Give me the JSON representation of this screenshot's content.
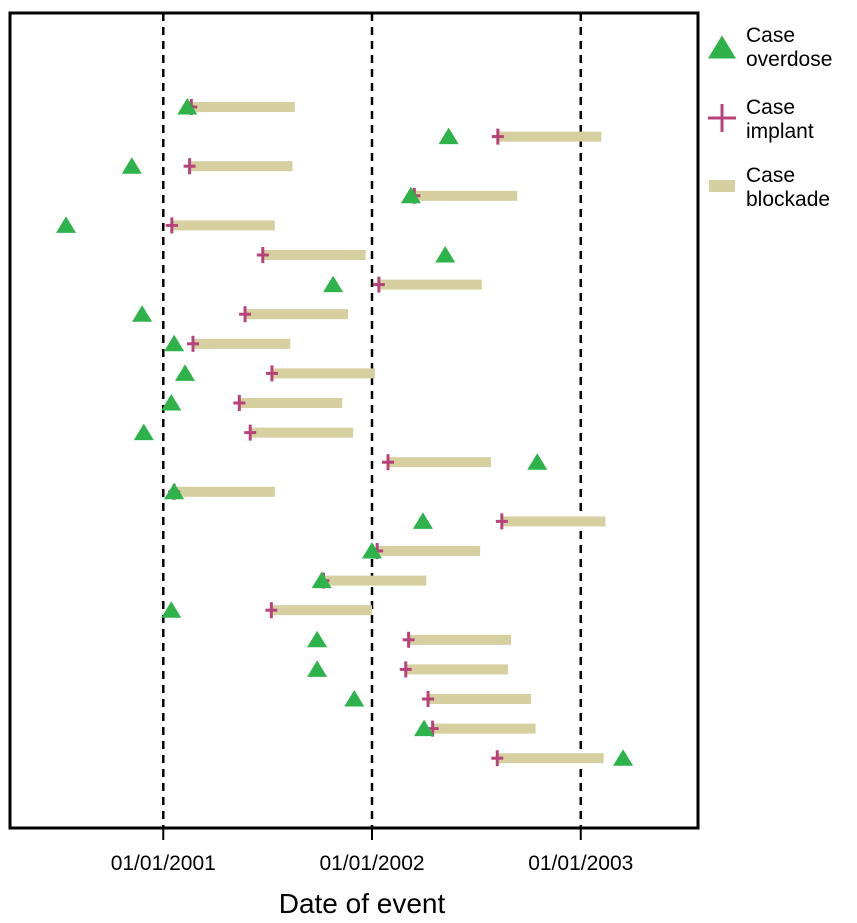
{
  "chart_data": {
    "type": "scatter",
    "xlabel": "Date of event",
    "ylabel": "",
    "title": "",
    "x_axis_type": "date",
    "xlim": [
      "2000-04-08",
      "2003-07-25"
    ],
    "x_ticks": [
      "2001-01-01",
      "2002-01-01",
      "2003-01-01"
    ],
    "x_tick_labels": [
      "01/01/2001",
      "01/01/2002",
      "01/01/2003"
    ],
    "reference_lines_at": [
      "2001-01-01",
      "2002-01-01",
      "2003-01-01"
    ],
    "grid": false,
    "legend_position": "right",
    "series": [
      {
        "name": "Case overdose",
        "marker": "triangle",
        "color": "#2db34a"
      },
      {
        "name": "Case implant",
        "marker": "plus",
        "color": "#b8437a"
      },
      {
        "name": "Case blockade",
        "marker": "bar",
        "color": "#d6cfa0"
      }
    ],
    "legend": [
      {
        "line1": "Case",
        "line2": "overdose"
      },
      {
        "line1": "Case",
        "line2": "implant"
      },
      {
        "line1": "Case",
        "line2": "blockade"
      }
    ],
    "cases": [
      {
        "overdose": "2001-02-12",
        "implant": "2001-02-19",
        "blockade_start": "2001-02-19",
        "blockade_end": "2001-08-19"
      },
      {
        "overdose": "2002-05-15",
        "implant": "2002-08-09",
        "blockade_start": "2002-08-09",
        "blockade_end": "2003-02-06"
      },
      {
        "overdose": "2000-11-07",
        "implant": "2001-02-16",
        "blockade_start": "2001-02-16",
        "blockade_end": "2001-08-15"
      },
      {
        "overdose": "2002-03-10",
        "implant": "2002-03-16",
        "blockade_start": "2002-03-16",
        "blockade_end": "2002-09-12"
      },
      {
        "overdose": "2000-07-15",
        "implant": "2001-01-16",
        "blockade_start": "2001-01-16",
        "blockade_end": "2001-07-15"
      },
      {
        "overdose": "2002-05-09",
        "implant": "2001-06-24",
        "blockade_start": "2001-06-24",
        "blockade_end": "2001-12-21"
      },
      {
        "overdose": "2001-10-25",
        "implant": "2002-01-13",
        "blockade_start": "2002-01-13",
        "blockade_end": "2002-07-12"
      },
      {
        "overdose": "2000-11-25",
        "implant": "2001-05-24",
        "blockade_start": "2001-05-24",
        "blockade_end": "2001-11-20"
      },
      {
        "overdose": "2001-01-20",
        "implant": "2001-02-22",
        "blockade_start": "2001-02-22",
        "blockade_end": "2001-08-11"
      },
      {
        "overdose": "2001-02-08",
        "implant": "2001-07-10",
        "blockade_start": "2001-07-10",
        "blockade_end": "2002-01-06"
      },
      {
        "overdose": "2001-01-15",
        "implant": "2001-05-14",
        "blockade_start": "2001-05-14",
        "blockade_end": "2001-11-10"
      },
      {
        "overdose": "2000-11-28",
        "implant": "2001-06-02",
        "blockade_start": "2001-06-02",
        "blockade_end": "2001-11-29"
      },
      {
        "overdose": "2002-10-17",
        "implant": "2002-01-29",
        "blockade_start": "2002-01-29",
        "blockade_end": "2002-07-28"
      },
      {
        "overdose": "2001-01-20",
        "implant": "2001-01-20",
        "blockade_start": "2001-01-20",
        "blockade_end": "2001-07-15"
      },
      {
        "overdose": "2002-03-31",
        "implant": "2002-08-16",
        "blockade_start": "2002-08-16",
        "blockade_end": "2003-02-13"
      },
      {
        "overdose": "2002-01-01",
        "implant": "2002-01-10",
        "blockade_start": "2002-01-10",
        "blockade_end": "2002-07-09"
      },
      {
        "overdose": "2001-10-05",
        "implant": "2001-10-08",
        "blockade_start": "2001-10-08",
        "blockade_end": "2002-04-06"
      },
      {
        "overdose": "2001-01-15",
        "implant": "2001-07-09",
        "blockade_start": "2001-07-09",
        "blockade_end": "2002-01-01"
      },
      {
        "overdose": "2001-09-27",
        "implant": "2002-03-06",
        "blockade_start": "2002-03-06",
        "blockade_end": "2002-09-01"
      },
      {
        "overdose": "2001-09-27",
        "implant": "2002-03-01",
        "blockade_start": "2002-03-01",
        "blockade_end": "2002-08-27"
      },
      {
        "overdose": "2001-12-01",
        "implant": "2002-04-09",
        "blockade_start": "2002-04-09",
        "blockade_end": "2002-10-06"
      },
      {
        "overdose": "2002-04-02",
        "implant": "2002-04-17",
        "blockade_start": "2002-04-17",
        "blockade_end": "2002-10-14"
      },
      {
        "overdose": "2003-03-16",
        "implant": "2002-08-08",
        "blockade_start": "2002-08-08",
        "blockade_end": "2003-02-10"
      }
    ]
  }
}
